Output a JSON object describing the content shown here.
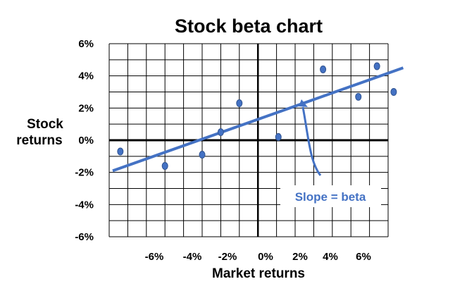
{
  "chart_data": {
    "type": "scatter",
    "title": "Stock beta chart",
    "xlabel": "Market returns",
    "ylabel": [
      "Stock",
      "returns"
    ],
    "xlim": [
      -8,
      7
    ],
    "ylim": [
      -6,
      6
    ],
    "x_tick_labels": [
      "-6%",
      "-4%",
      "-2%",
      "0%",
      "2%",
      "4%",
      "6%"
    ],
    "y_tick_labels": [
      "6%",
      "4%",
      "2%",
      "0%",
      "-2%",
      "-4%",
      "-6%"
    ],
    "grid": true,
    "points": [
      {
        "x": -7.4,
        "y": -0.7
      },
      {
        "x": -5.0,
        "y": -1.6
      },
      {
        "x": -3.0,
        "y": -0.9
      },
      {
        "x": -2.0,
        "y": 0.5
      },
      {
        "x": -1.0,
        "y": 2.3
      },
      {
        "x": 1.1,
        "y": 0.2
      },
      {
        "x": 3.5,
        "y": 4.4
      },
      {
        "x": 5.4,
        "y": 2.7
      },
      {
        "x": 6.4,
        "y": 4.6
      },
      {
        "x": 7.3,
        "y": 3.0
      }
    ],
    "regression_line": {
      "x1": -8.0,
      "y1": -1.9,
      "x2": 8.0,
      "y2": 4.5
    },
    "annotation": "Slope = beta",
    "colors": {
      "points": "#4472c4",
      "line": "#4472c4",
      "grid": "#000000"
    }
  }
}
